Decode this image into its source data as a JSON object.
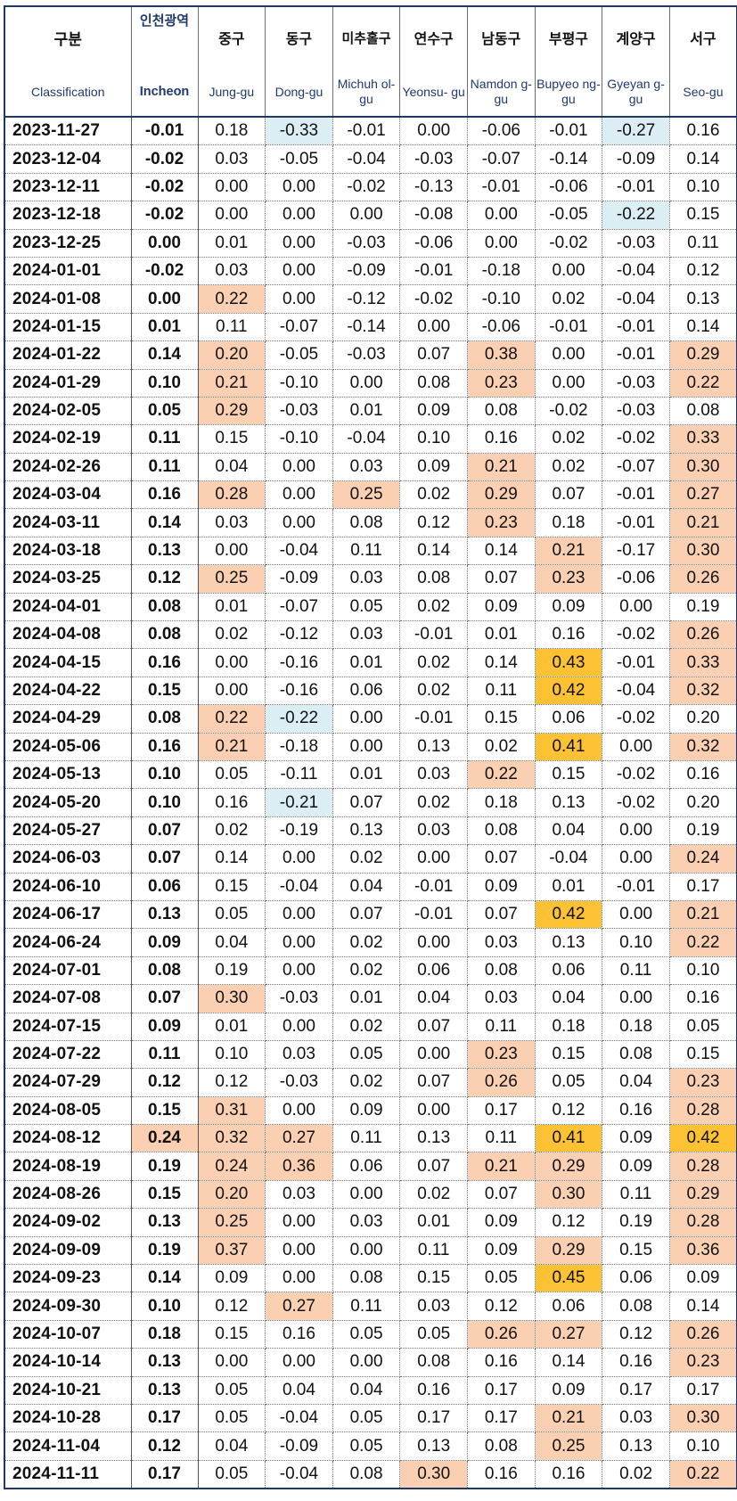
{
  "header": {
    "korean": [
      "구분",
      "인천광역",
      "중구",
      "동구",
      "미추홀구",
      "연수구",
      "남동구",
      "부평구",
      "계양구",
      "서구"
    ],
    "english": [
      "Classification",
      "Incheon",
      "Jung-gu",
      "Dong-gu",
      "Michuh ol-gu",
      "Yeonsu- gu",
      "Namdon g-gu",
      "Bupyeo ng-gu",
      "Gyeyan g-gu",
      "Seo-gu"
    ]
  },
  "colors": {
    "peach": "#fbd0b2",
    "orange": "#fdc134",
    "light_blue": "#dbeef4",
    "border": "#1f3864"
  },
  "rows": [
    {
      "date": "2023-11-27",
      "values": [
        "-0.01",
        "0.18",
        "-0.33",
        "-0.01",
        "0.00",
        "-0.06",
        "-0.01",
        "-0.27",
        "0.16"
      ],
      "hl": [
        null,
        null,
        "b",
        null,
        null,
        null,
        null,
        "b",
        null
      ]
    },
    {
      "date": "2023-12-04",
      "values": [
        "-0.02",
        "0.03",
        "-0.05",
        "-0.04",
        "-0.03",
        "-0.07",
        "-0.14",
        "-0.09",
        "0.14"
      ],
      "hl": [
        null,
        null,
        null,
        null,
        null,
        null,
        null,
        null,
        null
      ]
    },
    {
      "date": "2023-12-11",
      "values": [
        "-0.02",
        "0.00",
        "0.00",
        "-0.02",
        "-0.13",
        "-0.01",
        "-0.06",
        "-0.01",
        "0.10"
      ],
      "hl": [
        null,
        null,
        null,
        null,
        null,
        null,
        null,
        null,
        null
      ]
    },
    {
      "date": "2023-12-18",
      "values": [
        "-0.02",
        "0.00",
        "0.00",
        "0.00",
        "-0.08",
        "0.00",
        "-0.05",
        "-0.22",
        "0.15"
      ],
      "hl": [
        null,
        null,
        null,
        null,
        null,
        null,
        null,
        "b",
        null
      ]
    },
    {
      "date": "2023-12-25",
      "values": [
        "0.00",
        "0.01",
        "0.00",
        "-0.03",
        "-0.06",
        "0.00",
        "-0.02",
        "-0.03",
        "0.11"
      ],
      "hl": [
        null,
        null,
        null,
        null,
        null,
        null,
        null,
        null,
        null
      ]
    },
    {
      "date": "2024-01-01",
      "values": [
        "-0.02",
        "0.03",
        "0.00",
        "-0.09",
        "-0.01",
        "-0.18",
        "0.00",
        "-0.04",
        "0.12"
      ],
      "hl": [
        null,
        null,
        null,
        null,
        null,
        null,
        null,
        null,
        null
      ]
    },
    {
      "date": "2024-01-08",
      "values": [
        "0.00",
        "0.22",
        "0.00",
        "-0.12",
        "-0.02",
        "-0.10",
        "0.02",
        "-0.04",
        "0.13"
      ],
      "hl": [
        null,
        "p",
        null,
        null,
        null,
        null,
        null,
        null,
        null
      ]
    },
    {
      "date": "2024-01-15",
      "values": [
        "0.01",
        "0.11",
        "-0.07",
        "-0.14",
        "0.00",
        "-0.06",
        "-0.01",
        "-0.01",
        "0.14"
      ],
      "hl": [
        null,
        null,
        null,
        null,
        null,
        null,
        null,
        null,
        null
      ]
    },
    {
      "date": "2024-01-22",
      "values": [
        "0.14",
        "0.20",
        "-0.05",
        "-0.03",
        "0.07",
        "0.38",
        "0.00",
        "-0.01",
        "0.29"
      ],
      "hl": [
        null,
        "p",
        null,
        null,
        null,
        "p",
        null,
        null,
        "p"
      ]
    },
    {
      "date": "2024-01-29",
      "values": [
        "0.10",
        "0.21",
        "-0.10",
        "0.00",
        "0.08",
        "0.23",
        "0.00",
        "-0.03",
        "0.22"
      ],
      "hl": [
        null,
        "p",
        null,
        null,
        null,
        "p",
        null,
        null,
        "p"
      ]
    },
    {
      "date": "2024-02-05",
      "values": [
        "0.05",
        "0.29",
        "-0.03",
        "0.01",
        "0.09",
        "0.08",
        "-0.02",
        "-0.03",
        "0.08"
      ],
      "hl": [
        null,
        "p",
        null,
        null,
        null,
        null,
        null,
        null,
        null
      ]
    },
    {
      "date": "2024-02-19",
      "values": [
        "0.11",
        "0.15",
        "-0.10",
        "-0.04",
        "0.10",
        "0.16",
        "0.02",
        "-0.02",
        "0.33"
      ],
      "hl": [
        null,
        null,
        null,
        null,
        null,
        null,
        null,
        null,
        "p"
      ]
    },
    {
      "date": "2024-02-26",
      "values": [
        "0.11",
        "0.04",
        "0.00",
        "0.03",
        "0.09",
        "0.21",
        "0.02",
        "-0.07",
        "0.30"
      ],
      "hl": [
        null,
        null,
        null,
        null,
        null,
        "p",
        null,
        null,
        "p"
      ]
    },
    {
      "date": "2024-03-04",
      "values": [
        "0.16",
        "0.28",
        "0.00",
        "0.25",
        "0.02",
        "0.29",
        "0.07",
        "-0.01",
        "0.27"
      ],
      "hl": [
        null,
        "p",
        null,
        "p",
        null,
        "p",
        null,
        null,
        "p"
      ]
    },
    {
      "date": "2024-03-11",
      "values": [
        "0.14",
        "0.03",
        "0.00",
        "0.08",
        "0.12",
        "0.23",
        "0.18",
        "-0.01",
        "0.21"
      ],
      "hl": [
        null,
        null,
        null,
        null,
        null,
        "p",
        null,
        null,
        "p"
      ]
    },
    {
      "date": "2024-03-18",
      "values": [
        "0.13",
        "0.00",
        "-0.04",
        "0.11",
        "0.14",
        "0.14",
        "0.21",
        "-0.17",
        "0.30"
      ],
      "hl": [
        null,
        null,
        null,
        null,
        null,
        null,
        "p",
        null,
        "p"
      ]
    },
    {
      "date": "2024-03-25",
      "values": [
        "0.12",
        "0.25",
        "-0.09",
        "0.03",
        "0.08",
        "0.07",
        "0.23",
        "-0.06",
        "0.26"
      ],
      "hl": [
        null,
        "p",
        null,
        null,
        null,
        null,
        "p",
        null,
        "p"
      ]
    },
    {
      "date": "2024-04-01",
      "values": [
        "0.08",
        "0.01",
        "-0.07",
        "0.05",
        "0.02",
        "0.09",
        "0.09",
        "0.00",
        "0.19"
      ],
      "hl": [
        null,
        null,
        null,
        null,
        null,
        null,
        null,
        null,
        null
      ]
    },
    {
      "date": "2024-04-08",
      "values": [
        "0.08",
        "0.02",
        "-0.12",
        "0.03",
        "-0.01",
        "0.01",
        "0.16",
        "-0.02",
        "0.26"
      ],
      "hl": [
        null,
        null,
        null,
        null,
        null,
        null,
        null,
        null,
        "p"
      ]
    },
    {
      "date": "2024-04-15",
      "values": [
        "0.16",
        "0.00",
        "-0.16",
        "0.01",
        "0.02",
        "0.14",
        "0.43",
        "-0.01",
        "0.33"
      ],
      "hl": [
        null,
        null,
        null,
        null,
        null,
        null,
        "o",
        null,
        "p"
      ]
    },
    {
      "date": "2024-04-22",
      "values": [
        "0.15",
        "0.00",
        "-0.16",
        "0.06",
        "0.02",
        "0.11",
        "0.42",
        "-0.04",
        "0.32"
      ],
      "hl": [
        null,
        null,
        null,
        null,
        null,
        null,
        "o",
        null,
        "p"
      ]
    },
    {
      "date": "2024-04-29",
      "values": [
        "0.08",
        "0.22",
        "-0.22",
        "0.00",
        "-0.01",
        "0.15",
        "0.06",
        "-0.02",
        "0.20"
      ],
      "hl": [
        null,
        "p",
        "b",
        null,
        null,
        null,
        null,
        null,
        null
      ]
    },
    {
      "date": "2024-05-06",
      "values": [
        "0.16",
        "0.21",
        "-0.18",
        "0.00",
        "0.13",
        "0.02",
        "0.41",
        "0.00",
        "0.32"
      ],
      "hl": [
        null,
        "p",
        null,
        null,
        null,
        null,
        "o",
        null,
        "p"
      ]
    },
    {
      "date": "2024-05-13",
      "values": [
        "0.10",
        "0.05",
        "-0.11",
        "0.01",
        "0.03",
        "0.22",
        "0.15",
        "-0.02",
        "0.16"
      ],
      "hl": [
        null,
        null,
        null,
        null,
        null,
        "p",
        null,
        null,
        null
      ]
    },
    {
      "date": "2024-05-20",
      "values": [
        "0.10",
        "0.16",
        "-0.21",
        "0.07",
        "0.02",
        "0.18",
        "0.13",
        "-0.02",
        "0.20"
      ],
      "hl": [
        null,
        null,
        "b",
        null,
        null,
        null,
        null,
        null,
        null
      ]
    },
    {
      "date": "2024-05-27",
      "values": [
        "0.07",
        "0.02",
        "-0.19",
        "0.13",
        "0.03",
        "0.08",
        "0.04",
        "0.00",
        "0.19"
      ],
      "hl": [
        null,
        null,
        null,
        null,
        null,
        null,
        null,
        null,
        null
      ]
    },
    {
      "date": "2024-06-03",
      "values": [
        "0.07",
        "0.14",
        "0.00",
        "0.02",
        "0.00",
        "0.07",
        "-0.04",
        "0.00",
        "0.24"
      ],
      "hl": [
        null,
        null,
        null,
        null,
        null,
        null,
        null,
        null,
        "p"
      ]
    },
    {
      "date": "2024-06-10",
      "values": [
        "0.06",
        "0.15",
        "-0.04",
        "0.04",
        "-0.01",
        "0.09",
        "0.01",
        "-0.01",
        "0.17"
      ],
      "hl": [
        null,
        null,
        null,
        null,
        null,
        null,
        null,
        null,
        null
      ]
    },
    {
      "date": "2024-06-17",
      "values": [
        "0.13",
        "0.05",
        "0.00",
        "0.07",
        "-0.01",
        "0.07",
        "0.42",
        "0.00",
        "0.21"
      ],
      "hl": [
        null,
        null,
        null,
        null,
        null,
        null,
        "o",
        null,
        "p"
      ]
    },
    {
      "date": "2024-06-24",
      "values": [
        "0.09",
        "0.04",
        "0.00",
        "0.02",
        "0.00",
        "0.03",
        "0.13",
        "0.10",
        "0.22"
      ],
      "hl": [
        null,
        null,
        null,
        null,
        null,
        null,
        null,
        null,
        "p"
      ]
    },
    {
      "date": "2024-07-01",
      "values": [
        "0.08",
        "0.19",
        "0.00",
        "0.02",
        "0.06",
        "0.08",
        "0.06",
        "0.11",
        "0.10"
      ],
      "hl": [
        null,
        null,
        null,
        null,
        null,
        null,
        null,
        null,
        null
      ]
    },
    {
      "date": "2024-07-08",
      "values": [
        "0.07",
        "0.30",
        "-0.03",
        "0.01",
        "0.04",
        "0.03",
        "0.04",
        "0.00",
        "0.16"
      ],
      "hl": [
        null,
        "p",
        null,
        null,
        null,
        null,
        null,
        null,
        null
      ]
    },
    {
      "date": "2024-07-15",
      "values": [
        "0.09",
        "0.01",
        "0.00",
        "0.02",
        "0.07",
        "0.11",
        "0.18",
        "0.18",
        "0.05"
      ],
      "hl": [
        null,
        null,
        null,
        null,
        null,
        null,
        null,
        null,
        null
      ]
    },
    {
      "date": "2024-07-22",
      "values": [
        "0.11",
        "0.10",
        "0.03",
        "0.05",
        "0.00",
        "0.23",
        "0.15",
        "0.08",
        "0.15"
      ],
      "hl": [
        null,
        null,
        null,
        null,
        null,
        "p",
        null,
        null,
        null
      ]
    },
    {
      "date": "2024-07-29",
      "values": [
        "0.12",
        "0.12",
        "-0.03",
        "0.02",
        "0.07",
        "0.26",
        "0.05",
        "0.04",
        "0.23"
      ],
      "hl": [
        null,
        null,
        null,
        null,
        null,
        "p",
        null,
        null,
        "p"
      ]
    },
    {
      "date": "2024-08-05",
      "values": [
        "0.15",
        "0.31",
        "0.00",
        "0.09",
        "0.00",
        "0.17",
        "0.12",
        "0.16",
        "0.28"
      ],
      "hl": [
        null,
        "p",
        null,
        null,
        null,
        null,
        null,
        null,
        "p"
      ]
    },
    {
      "date": "2024-08-12",
      "values": [
        "0.24",
        "0.32",
        "0.27",
        "0.11",
        "0.13",
        "0.11",
        "0.41",
        "0.09",
        "0.42"
      ],
      "hl": [
        "p",
        "p",
        "p",
        null,
        null,
        null,
        "o",
        null,
        "o"
      ]
    },
    {
      "date": "2024-08-19",
      "values": [
        "0.19",
        "0.24",
        "0.36",
        "0.06",
        "0.07",
        "0.21",
        "0.29",
        "0.09",
        "0.28"
      ],
      "hl": [
        null,
        "p",
        "p",
        null,
        null,
        "p",
        "p",
        null,
        "p"
      ]
    },
    {
      "date": "2024-08-26",
      "values": [
        "0.15",
        "0.20",
        "0.03",
        "0.00",
        "0.02",
        "0.07",
        "0.30",
        "0.11",
        "0.29"
      ],
      "hl": [
        null,
        "p",
        null,
        null,
        null,
        null,
        "p",
        null,
        "p"
      ]
    },
    {
      "date": "2024-09-02",
      "values": [
        "0.13",
        "0.25",
        "0.00",
        "0.03",
        "0.01",
        "0.09",
        "0.12",
        "0.19",
        "0.28"
      ],
      "hl": [
        null,
        "p",
        null,
        null,
        null,
        null,
        null,
        null,
        "p"
      ]
    },
    {
      "date": "2024-09-09",
      "values": [
        "0.19",
        "0.37",
        "0.00",
        "0.00",
        "0.11",
        "0.09",
        "0.29",
        "0.15",
        "0.36"
      ],
      "hl": [
        null,
        "p",
        null,
        null,
        null,
        null,
        "p",
        null,
        "p"
      ]
    },
    {
      "date": "2024-09-23",
      "values": [
        "0.14",
        "0.09",
        "0.00",
        "0.08",
        "0.15",
        "0.05",
        "0.45",
        "0.06",
        "0.09"
      ],
      "hl": [
        null,
        null,
        null,
        null,
        null,
        null,
        "o",
        null,
        null
      ]
    },
    {
      "date": "2024-09-30",
      "values": [
        "0.10",
        "0.12",
        "0.27",
        "0.11",
        "0.03",
        "0.12",
        "0.06",
        "0.08",
        "0.14"
      ],
      "hl": [
        null,
        null,
        "p",
        null,
        null,
        null,
        null,
        null,
        null
      ]
    },
    {
      "date": "2024-10-07",
      "values": [
        "0.18",
        "0.15",
        "0.16",
        "0.05",
        "0.05",
        "0.26",
        "0.27",
        "0.12",
        "0.26"
      ],
      "hl": [
        null,
        null,
        null,
        null,
        null,
        "p",
        "p",
        null,
        "p"
      ]
    },
    {
      "date": "2024-10-14",
      "values": [
        "0.13",
        "0.00",
        "0.00",
        "0.00",
        "0.08",
        "0.16",
        "0.14",
        "0.16",
        "0.23"
      ],
      "hl": [
        null,
        null,
        null,
        null,
        null,
        null,
        null,
        null,
        "p"
      ]
    },
    {
      "date": "2024-10-21",
      "values": [
        "0.13",
        "0.05",
        "0.04",
        "0.04",
        "0.16",
        "0.17",
        "0.09",
        "0.17",
        "0.17"
      ],
      "hl": [
        null,
        null,
        null,
        null,
        null,
        null,
        null,
        null,
        null
      ]
    },
    {
      "date": "2024-10-28",
      "values": [
        "0.17",
        "0.05",
        "-0.04",
        "0.05",
        "0.17",
        "0.17",
        "0.21",
        "0.03",
        "0.30"
      ],
      "hl": [
        null,
        null,
        null,
        null,
        null,
        null,
        "p",
        null,
        "p"
      ]
    },
    {
      "date": "2024-11-04",
      "values": [
        "0.12",
        "0.04",
        "-0.09",
        "0.05",
        "0.13",
        "0.08",
        "0.25",
        "0.13",
        "0.10"
      ],
      "hl": [
        null,
        null,
        null,
        null,
        null,
        null,
        "p",
        null,
        null
      ]
    },
    {
      "date": "2024-11-11",
      "values": [
        "0.17",
        "0.05",
        "-0.04",
        "0.08",
        "0.30",
        "0.16",
        "0.16",
        "0.02",
        "0.22"
      ],
      "hl": [
        null,
        null,
        null,
        null,
        "p",
        null,
        null,
        null,
        "p"
      ]
    }
  ]
}
